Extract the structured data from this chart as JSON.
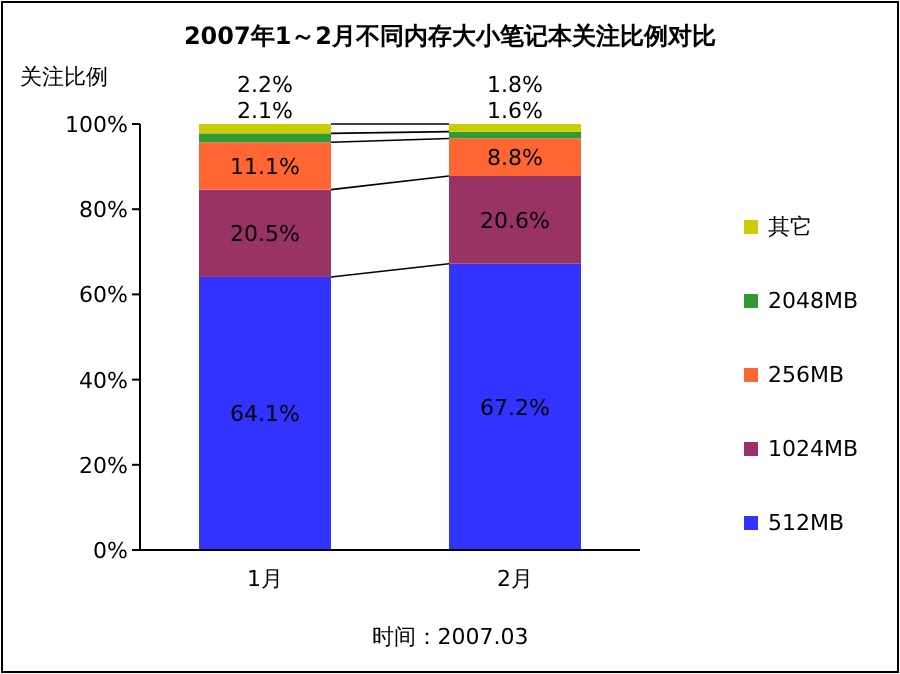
{
  "chart_data": {
    "type": "bar",
    "stacked": true,
    "title": "2007年1～2月不同内存大小笔记本关注比例对比",
    "ylabel": "关注比例",
    "categories": [
      "1月",
      "2月"
    ],
    "ylim": [
      0,
      100
    ],
    "yticks": [
      {
        "value": 0,
        "label": "0%"
      },
      {
        "value": 20,
        "label": "20%"
      },
      {
        "value": 40,
        "label": "40%"
      },
      {
        "value": 60,
        "label": "60%"
      },
      {
        "value": 80,
        "label": "80%"
      },
      {
        "value": 100,
        "label": "100%"
      }
    ],
    "series": [
      {
        "name": "512MB",
        "color": "#3333ff",
        "values": [
          64.1,
          67.2
        ],
        "value_labels": [
          "64.1%",
          "67.2%"
        ]
      },
      {
        "name": "1024MB",
        "color": "#993366",
        "values": [
          20.5,
          20.6
        ],
        "value_labels": [
          "20.5%",
          "20.6%"
        ]
      },
      {
        "name": "256MB",
        "color": "#ff6633",
        "values": [
          11.1,
          8.8
        ],
        "value_labels": [
          "11.1%",
          "8.8%"
        ]
      },
      {
        "name": "2048MB",
        "color": "#339933",
        "values": [
          2.1,
          1.6
        ],
        "value_labels": [
          "2.1%",
          "1.6%"
        ]
      },
      {
        "name": "其它",
        "color": "#cccc00",
        "values": [
          2.2,
          1.8
        ],
        "value_labels": [
          "2.2%",
          "1.8%"
        ]
      }
    ],
    "legend": "right",
    "annotations": [
      "时间：2007.03"
    ]
  }
}
